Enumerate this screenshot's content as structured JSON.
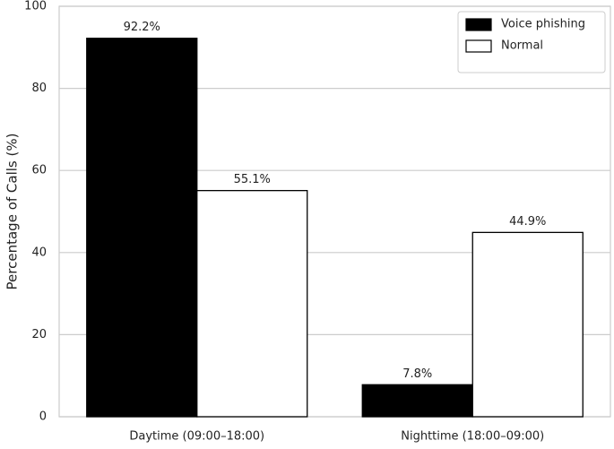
{
  "chart_data": {
    "type": "bar",
    "y_label": "Percentage of Calls (%)",
    "categories": [
      "Daytime (09:00–18:00)",
      "Nighttime (18:00–09:00)"
    ],
    "series": [
      {
        "name": "Voice phishing",
        "color": "#000000",
        "values": [
          92.2,
          7.8
        ],
        "value_labels": [
          "92.2%",
          "7.8%"
        ]
      },
      {
        "name": "Normal",
        "color": "#ffffff",
        "values": [
          55.1,
          44.9
        ],
        "value_labels": [
          "55.1%",
          "44.9%"
        ]
      }
    ],
    "ylim": [
      0,
      100
    ],
    "yticks": [
      0,
      20,
      40,
      60,
      80,
      100
    ],
    "grid": true,
    "legend": "upper right"
  }
}
